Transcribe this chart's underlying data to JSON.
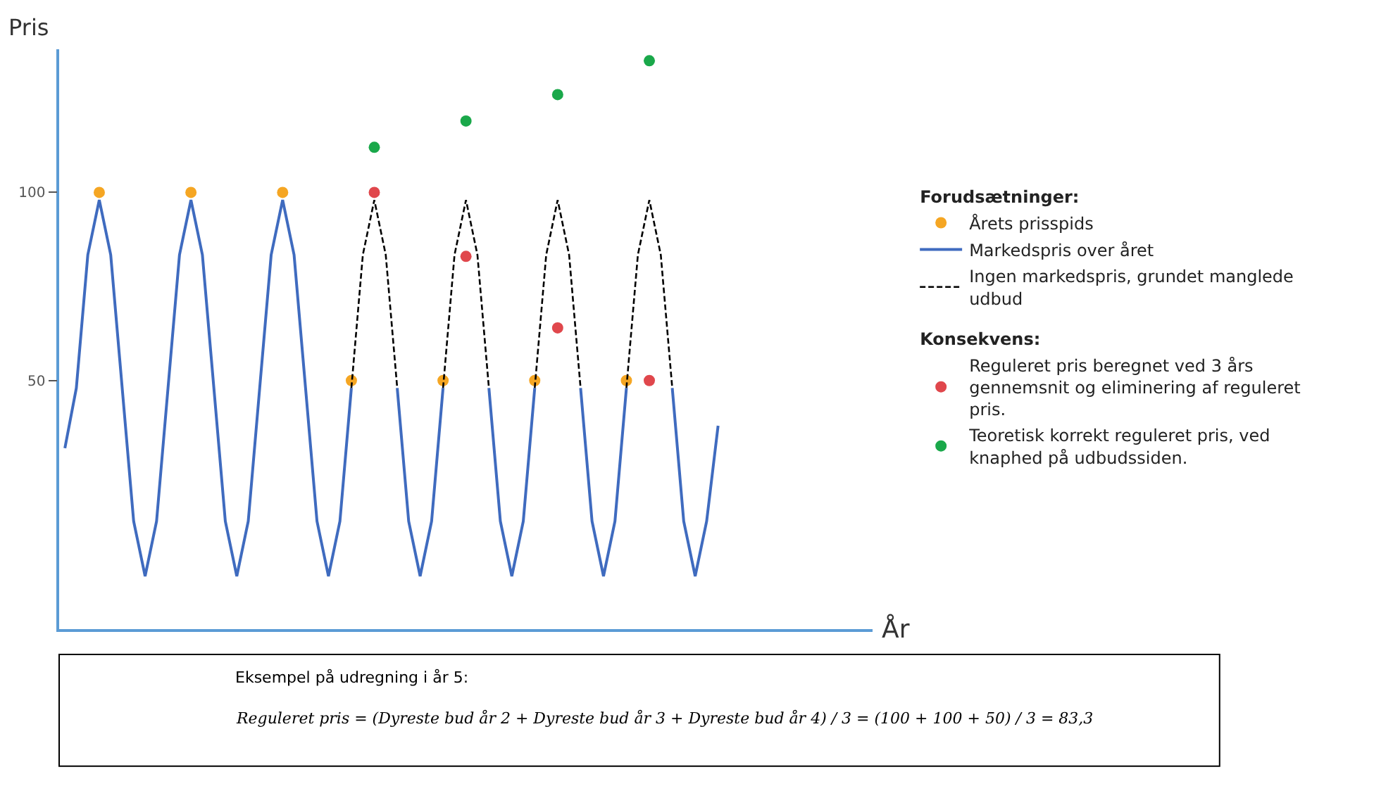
{
  "chart_data": {
    "type": "line",
    "xlabel": "År",
    "ylabel": "Pris",
    "legend_title": "Forudsætninger:",
    "categories": [
      null,
      null,
      null,
      null,
      null,
      null,
      null,
      null,
      null,
      null,
      null,
      null,
      null,
      null,
      null,
      null,
      null,
      null,
      null,
      null,
      null,
      null,
      null,
      null,
      null,
      null,
      null,
      null,
      null,
      null,
      null,
      null,
      null,
      null,
      null,
      null,
      null,
      null,
      null,
      null,
      null,
      null,
      null,
      null,
      null,
      null,
      null,
      null,
      null,
      null,
      null,
      null,
      null,
      null,
      null,
      null,
      null,
      null,
      null,
      null,
      null,
      null,
      null,
      null,
      null,
      null,
      null,
      null,
      null,
      null,
      null
    ],
    "ylim": [
      -16,
      138
    ],
    "yticks": [
      50,
      100
    ],
    "tick_labels": "y",
    "legend": "right",
    "series": [
      {
        "name": "Årets prisspids",
        "color": "#f5a623",
        "type": "scatter",
        "marker": "circle",
        "values": [
          null,
          null,
          null,
          100,
          null,
          null,
          null,
          null,
          null,
          null,
          null,
          100,
          null,
          null,
          null,
          null,
          null,
          null,
          null,
          100,
          null,
          null,
          null,
          null,
          null,
          50,
          null,
          null,
          null,
          null,
          null,
          null,
          null,
          50,
          null,
          null,
          null,
          null,
          null,
          null,
          null,
          50,
          null,
          null,
          null,
          null,
          null,
          null,
          null,
          50,
          null,
          null,
          null,
          null,
          null,
          null,
          null,
          null,
          null,
          null,
          null,
          null,
          null,
          null,
          null,
          null,
          null,
          null,
          null,
          null,
          null
        ]
      },
      {
        "name": "Markedspris over året",
        "color": "#3f6bbf",
        "line_style": "solid",
        "values": [
          32,
          48,
          83.4,
          98,
          83.4,
          48,
          12.6,
          -2,
          12.6,
          48,
          83.4,
          98,
          83.4,
          48,
          12.6,
          -2,
          12.6,
          48,
          83.4,
          98,
          83.4,
          48,
          12.6,
          -2,
          12.6,
          48,
          null,
          null,
          null,
          48,
          12.6,
          -2,
          12.6,
          48,
          null,
          null,
          null,
          48,
          12.6,
          -2,
          12.6,
          48,
          null,
          null,
          null,
          48,
          12.6,
          -2,
          12.6,
          48,
          null,
          null,
          null,
          48,
          12.6,
          -2,
          12.6,
          38,
          null,
          null,
          null,
          null,
          null,
          null,
          null,
          null,
          null,
          null,
          null,
          null,
          null
        ]
      },
      {
        "name": "Ingen markedspris, grundet manglede udbud",
        "color": "#000000",
        "line_style": "dashed",
        "values": [
          null,
          null,
          null,
          null,
          null,
          null,
          null,
          null,
          null,
          null,
          null,
          null,
          null,
          null,
          null,
          null,
          null,
          null,
          null,
          null,
          null,
          null,
          null,
          null,
          null,
          48,
          83.4,
          98,
          83.4,
          48,
          null,
          null,
          null,
          48,
          83.4,
          98,
          83.4,
          48,
          null,
          null,
          null,
          48,
          83.4,
          98,
          83.4,
          48,
          null,
          null,
          null,
          48,
          83.4,
          98,
          83.4,
          48,
          null,
          null,
          null,
          null,
          null,
          null,
          null,
          null,
          null,
          null,
          null,
          null,
          null,
          null,
          null,
          null,
          null
        ]
      },
      {
        "name": "Reguleret pris beregnet ved 3 års gennemsnit og eliminering af reguleret pris.",
        "color": "#e0474c",
        "type": "scatter",
        "marker": "circle",
        "values": [
          null,
          null,
          null,
          null,
          null,
          null,
          null,
          null,
          null,
          null,
          null,
          null,
          null,
          null,
          null,
          null,
          null,
          null,
          null,
          null,
          null,
          null,
          null,
          null,
          null,
          null,
          null,
          100,
          null,
          null,
          null,
          null,
          null,
          null,
          null,
          83,
          null,
          null,
          null,
          null,
          null,
          null,
          null,
          64,
          null,
          null,
          null,
          null,
          null,
          null,
          null,
          50,
          null,
          null,
          null,
          null,
          null,
          null,
          null,
          null,
          null,
          null,
          null,
          null,
          null,
          null,
          null,
          null,
          null,
          null,
          null
        ]
      },
      {
        "name": "Teoretisk korrekt reguleret pris, ved knaphed på udbudssiden.",
        "color": "#1aa84a",
        "type": "scatter",
        "marker": "circle",
        "values": [
          null,
          null,
          null,
          null,
          null,
          null,
          null,
          null,
          null,
          null,
          null,
          null,
          null,
          null,
          null,
          null,
          null,
          null,
          null,
          null,
          null,
          null,
          null,
          null,
          null,
          null,
          null,
          112,
          null,
          null,
          null,
          null,
          null,
          null,
          null,
          119,
          null,
          null,
          null,
          null,
          null,
          null,
          null,
          126,
          null,
          null,
          null,
          null,
          null,
          null,
          null,
          135,
          null,
          null,
          null,
          null,
          null,
          null,
          null,
          null,
          null,
          null,
          null,
          null,
          null,
          null,
          null,
          null,
          null,
          null,
          null
        ]
      }
    ],
    "annotations": [
      "Konsekvens:",
      "Eksempel på udregning i år 5:",
      "Reguleret pris = (Dyreste bud år 2 + Dyreste bud år 3 + Dyreste bud år 4) / 3 = (100 + 100 + 50) / 3 = 83,3"
    ]
  }
}
